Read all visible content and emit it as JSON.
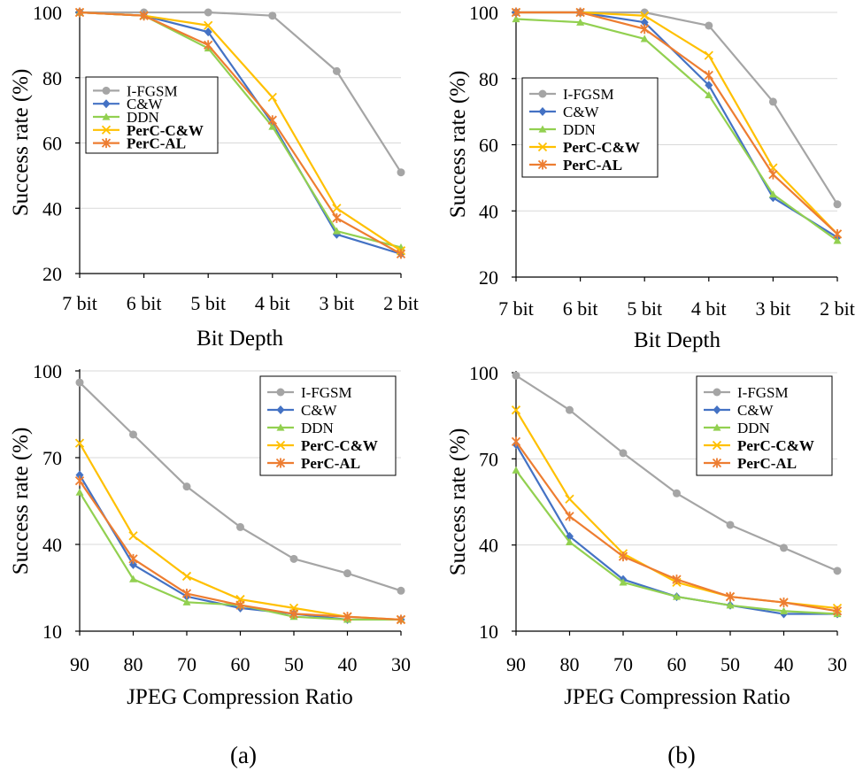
{
  "colors": {
    "I-FGSM": "#a5a5a5",
    "C&W": "#4472c4",
    "DDN": "#92d050",
    "PerC-C&W": "#ffc000",
    "PerC-AL": "#ed7d31",
    "gridline": "#d9d9d9",
    "axis": "#000000"
  },
  "chart_data": [
    {
      "type": "line",
      "panel": "a",
      "title": "",
      "xlabel": "Bit Depth",
      "ylabel": "Success rate (%)",
      "categories": [
        "7 bit",
        "6 bit",
        "5 bit",
        "4 bit",
        "3 bit",
        "2 bit"
      ],
      "ylim": [
        20,
        100
      ],
      "yticks": [
        20,
        40,
        60,
        80,
        100
      ],
      "grid": true,
      "legend_position": "left-middle",
      "series": [
        {
          "name": "I-FGSM",
          "marker": "circle",
          "bold": false,
          "values": [
            100,
            100,
            100,
            99,
            82,
            51
          ]
        },
        {
          "name": "C&W",
          "marker": "diamond",
          "bold": false,
          "values": [
            100,
            99,
            94,
            66,
            32,
            26
          ]
        },
        {
          "name": "DDN",
          "marker": "triangle",
          "bold": false,
          "values": [
            100,
            99,
            89,
            65,
            33,
            28
          ]
        },
        {
          "name": "PerC-C&W",
          "marker": "x",
          "bold": true,
          "values": [
            100,
            99,
            96,
            74,
            40,
            27
          ]
        },
        {
          "name": "PerC-AL",
          "marker": "star",
          "bold": true,
          "values": [
            100,
            99,
            90,
            67,
            37,
            26
          ]
        }
      ]
    },
    {
      "type": "line",
      "panel": "b",
      "title": "",
      "xlabel": "Bit Depth",
      "ylabel": "Success rate (%)",
      "categories": [
        "7 bit",
        "6 bit",
        "5 bit",
        "4 bit",
        "3 bit",
        "2 bit"
      ],
      "ylim": [
        20,
        100
      ],
      "yticks": [
        20,
        40,
        60,
        80,
        100
      ],
      "grid": true,
      "legend_position": "right-middle",
      "series": [
        {
          "name": "I-FGSM",
          "marker": "circle",
          "bold": false,
          "values": [
            100,
            100,
            100,
            96,
            73,
            42
          ]
        },
        {
          "name": "C&W",
          "marker": "diamond",
          "bold": false,
          "values": [
            100,
            100,
            97,
            78,
            44,
            32
          ]
        },
        {
          "name": "DDN",
          "marker": "triangle",
          "bold": false,
          "values": [
            98,
            97,
            92,
            75,
            45,
            31
          ]
        },
        {
          "name": "PerC-C&W",
          "marker": "x",
          "bold": true,
          "values": [
            100,
            100,
            99,
            87,
            53,
            33
          ]
        },
        {
          "name": "PerC-AL",
          "marker": "star",
          "bold": true,
          "values": [
            100,
            100,
            95,
            81,
            51,
            33
          ]
        }
      ]
    },
    {
      "type": "line",
      "panel": "a",
      "title": "",
      "xlabel": "JPEG Compression Ratio",
      "ylabel": "Success rate (%)",
      "categories": [
        "90",
        "80",
        "70",
        "60",
        "50",
        "40",
        "30"
      ],
      "ylim": [
        10,
        100
      ],
      "yticks": [
        10,
        40,
        70,
        100
      ],
      "grid": true,
      "legend_position": "top-right",
      "series": [
        {
          "name": "I-FGSM",
          "marker": "circle",
          "bold": false,
          "values": [
            96,
            78,
            60,
            46,
            35,
            30,
            24
          ]
        },
        {
          "name": "C&W",
          "marker": "diamond",
          "bold": false,
          "values": [
            64,
            33,
            22,
            18,
            16,
            14,
            14
          ]
        },
        {
          "name": "DDN",
          "marker": "triangle",
          "bold": false,
          "values": [
            58,
            28,
            20,
            19,
            15,
            14,
            14
          ]
        },
        {
          "name": "PerC-C&W",
          "marker": "x",
          "bold": true,
          "values": [
            75,
            43,
            29,
            21,
            18,
            15,
            14
          ]
        },
        {
          "name": "PerC-AL",
          "marker": "star",
          "bold": true,
          "values": [
            62,
            35,
            23,
            19,
            16,
            15,
            14
          ]
        }
      ]
    },
    {
      "type": "line",
      "panel": "b",
      "title": "",
      "xlabel": "JPEG Compression Ratio",
      "ylabel": "Success rate (%)",
      "categories": [
        "90",
        "80",
        "70",
        "60",
        "50",
        "40",
        "30"
      ],
      "ylim": [
        10,
        100
      ],
      "yticks": [
        10,
        40,
        70,
        100
      ],
      "grid": true,
      "legend_position": "top-right",
      "series": [
        {
          "name": "I-FGSM",
          "marker": "circle",
          "bold": false,
          "values": [
            99,
            87,
            72,
            58,
            47,
            39,
            31
          ]
        },
        {
          "name": "C&W",
          "marker": "diamond",
          "bold": false,
          "values": [
            75,
            43,
            28,
            22,
            19,
            16,
            16
          ]
        },
        {
          "name": "DDN",
          "marker": "triangle",
          "bold": false,
          "values": [
            66,
            41,
            27,
            22,
            19,
            17,
            16
          ]
        },
        {
          "name": "PerC-C&W",
          "marker": "x",
          "bold": true,
          "values": [
            87,
            56,
            37,
            27,
            22,
            20,
            18
          ]
        },
        {
          "name": "PerC-AL",
          "marker": "star",
          "bold": true,
          "values": [
            76,
            50,
            36,
            28,
            22,
            20,
            17
          ]
        }
      ]
    }
  ],
  "captions": {
    "left": "(a)",
    "right": "(b)"
  }
}
